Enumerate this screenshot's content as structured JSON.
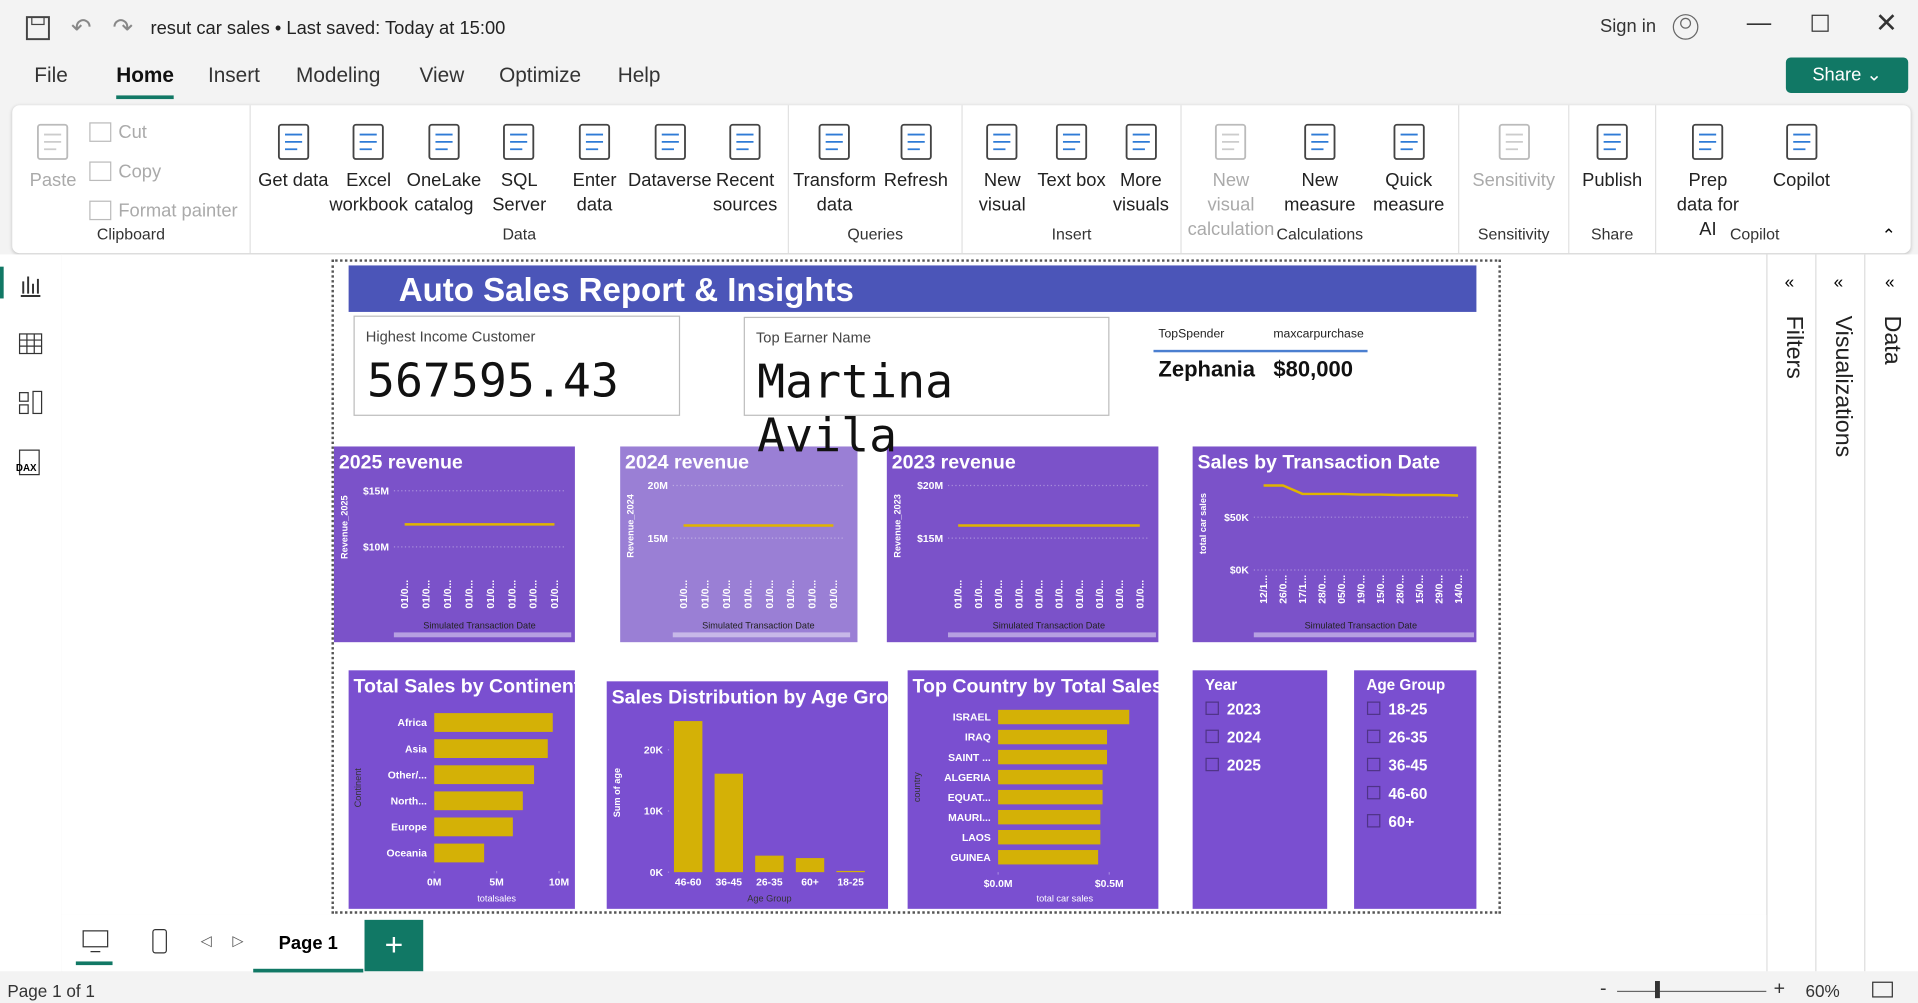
{
  "window": {
    "title": "resut car sales • Last saved: Today at 15:00",
    "sign_in": "Sign in"
  },
  "menu": {
    "tabs": [
      "File",
      "Home",
      "Insert",
      "Modeling",
      "View",
      "Optimize",
      "Help"
    ],
    "active_tab": "Home",
    "share": "Share"
  },
  "ribbon": {
    "groups": [
      {
        "name": "Clipboard",
        "buttons": [
          {
            "label": "Paste",
            "disabled": true
          },
          {
            "label": "Cut",
            "disabled": true
          },
          {
            "label": "Copy",
            "disabled": true
          },
          {
            "label": "Format painter",
            "disabled": true
          }
        ]
      },
      {
        "name": "Data",
        "buttons": [
          {
            "label": "Get data"
          },
          {
            "label": "Excel workbook"
          },
          {
            "label": "OneLake catalog"
          },
          {
            "label": "SQL Server"
          },
          {
            "label": "Enter data"
          },
          {
            "label": "Dataverse"
          },
          {
            "label": "Recent sources"
          }
        ]
      },
      {
        "name": "Queries",
        "buttons": [
          {
            "label": "Transform data"
          },
          {
            "label": "Refresh"
          }
        ]
      },
      {
        "name": "Insert",
        "buttons": [
          {
            "label": "New visual"
          },
          {
            "label": "Text box"
          },
          {
            "label": "More visuals"
          }
        ]
      },
      {
        "name": "Calculations",
        "buttons": [
          {
            "label": "New visual calculation",
            "disabled": true
          },
          {
            "label": "New measure"
          },
          {
            "label": "Quick measure"
          }
        ]
      },
      {
        "name": "Sensitivity",
        "buttons": [
          {
            "label": "Sensitivity",
            "disabled": true
          }
        ]
      },
      {
        "name": "Share",
        "buttons": [
          {
            "label": "Publish"
          }
        ]
      },
      {
        "name": "Copilot",
        "buttons": [
          {
            "label": "Prep data for AI"
          },
          {
            "label": "Copilot"
          }
        ]
      }
    ]
  },
  "report": {
    "title": "Auto Sales Report & Insights",
    "cards": [
      {
        "label": "Highest Income Customer",
        "value": "567595.43"
      },
      {
        "label": "Top Earner Name",
        "value": "Martina Avila"
      }
    ],
    "table": {
      "headers": [
        "TopSpender",
        "maxcarpurchase"
      ],
      "rows": [
        [
          "Zephania",
          "$80,000"
        ]
      ]
    },
    "charts": [
      {
        "type": "line",
        "title": "2025 revenue",
        "y_label": "Revenue_2025",
        "x_label": "Simulated Transaction Date",
        "categories": [
          "01/0...",
          "01/0...",
          "01/0...",
          "01/0...",
          "01/0...",
          "01/0...",
          "01/0...",
          "01/0..."
        ],
        "values": [
          12000000,
          12000000,
          12000000,
          12000000,
          12000000,
          12000000,
          12000000,
          12000000
        ],
        "ylim": [
          7500000,
          16000000
        ],
        "yticks": [
          {
            "value": 10000000,
            "label": "$10M"
          },
          {
            "value": 15000000,
            "label": "$15M"
          }
        ],
        "color": "#e0b400",
        "background": "#7b52c9",
        "grid": true
      },
      {
        "type": "line",
        "title": "2024 revenue",
        "y_label": "Revenue_2024",
        "x_label": "Simulated Transaction Date",
        "categories": [
          "01/0...",
          "01/0...",
          "01/0...",
          "01/0...",
          "01/0...",
          "01/0...",
          "01/0...",
          "01/0..."
        ],
        "values": [
          16200000,
          16200000,
          16200000,
          16200000,
          16200000,
          16200000,
          16200000,
          16200000
        ],
        "ylim": [
          11500000,
          20800000
        ],
        "yticks": [
          {
            "value": 15000000,
            "label": "15M"
          },
          {
            "value": 20000000,
            "label": "20M"
          }
        ],
        "color": "#e0b400",
        "background": "#9a7fd5",
        "grid": true
      },
      {
        "type": "line",
        "title": "2023 revenue",
        "y_label": "Revenue_2023",
        "x_label": "Simulated Transaction Date",
        "categories": [
          "01/0...",
          "01/0...",
          "01/0...",
          "01/0...",
          "01/0...",
          "01/0...",
          "01/0...",
          "01/0...",
          "01/0...",
          "01/0..."
        ],
        "values": [
          16200000,
          16200000,
          16200000,
          16200000,
          16200000,
          16200000,
          16200000,
          16200000,
          16200000,
          16200000
        ],
        "ylim": [
          11500000,
          20800000
        ],
        "yticks": [
          {
            "value": 15000000,
            "label": "$15M"
          },
          {
            "value": 20000000,
            "label": "$20M"
          }
        ],
        "color": "#e0b400",
        "background": "#7b52c9",
        "grid": true
      },
      {
        "type": "line",
        "title": "Sales by Transaction Date",
        "y_label": "total car sales",
        "x_label": "Simulated Transaction Date",
        "categories": [
          "12/1...",
          "26/0...",
          "17/1...",
          "28/0...",
          "05/0...",
          "19/0...",
          "15/0...",
          "28/0...",
          "15/0...",
          "29/0...",
          "14/0..."
        ],
        "values": [
          80000,
          80000,
          72000,
          72000,
          72000,
          71500,
          71500,
          71000,
          71000,
          71000,
          70500
        ],
        "ylim": [
          0,
          88000
        ],
        "yticks": [
          {
            "value": 0,
            "label": "$0K"
          },
          {
            "value": 50000,
            "label": "$50K"
          }
        ],
        "color": "#e0b400",
        "background": "#7b52c9",
        "grid": true
      },
      {
        "type": "bar",
        "orientation": "horizontal",
        "title": "Total Sales by Continent",
        "y_label": "Continent",
        "x_label": "totalsales",
        "categories": [
          "Africa",
          "Asia",
          "Other/...",
          "North...",
          "Europe",
          "Oceania"
        ],
        "values": [
          9500000,
          9100000,
          8000000,
          7100000,
          6300000,
          4000000
        ],
        "xlim": [
          0,
          10000000
        ],
        "xticks": [
          {
            "value": 0,
            "label": "0M"
          },
          {
            "value": 5000000,
            "label": "5M"
          },
          {
            "value": 10000000,
            "label": "10M"
          }
        ],
        "color": "#d4b106",
        "background": "#7a4fd0",
        "grid": false
      },
      {
        "type": "bar",
        "orientation": "vertical",
        "title": "Sales Distribution by Age Group",
        "y_label": "Sum of age",
        "x_label": "Age Group",
        "categories": [
          "46-60",
          "36-45",
          "26-35",
          "60+",
          "18-25"
        ],
        "values": [
          24700,
          16100,
          2700,
          2300,
          200
        ],
        "ylim": [
          0,
          26000
        ],
        "yticks": [
          {
            "value": 0,
            "label": "0K"
          },
          {
            "value": 10000,
            "label": "10K"
          },
          {
            "value": 20000,
            "label": "20K"
          }
        ],
        "color": "#d4b106",
        "background": "#7a4fd0",
        "grid": false
      },
      {
        "type": "bar",
        "orientation": "horizontal",
        "title": "Top Country by Total Sales",
        "y_label": "country",
        "x_label": "total car sales",
        "categories": [
          "ISRAEL",
          "IRAQ",
          "SAINT ...",
          "ALGERIA",
          "EQUAT...",
          "MAURI...",
          "LAOS",
          "GUINEA"
        ],
        "values": [
          590000,
          490000,
          490000,
          470000,
          470000,
          460000,
          460000,
          450000
        ],
        "xlim": [
          0,
          600000
        ],
        "xticks": [
          {
            "value": 0,
            "label": "$0.0M"
          },
          {
            "value": 500000,
            "label": "$0.5M"
          }
        ],
        "color": "#d4b106",
        "background": "#7a4fd0",
        "grid": false
      }
    ],
    "slicers": [
      {
        "title": "Year",
        "items": [
          "2023",
          "2024",
          "2025"
        ]
      },
      {
        "title": "Age Group",
        "items": [
          "18-25",
          "26-35",
          "36-45",
          "46-60",
          "60+"
        ]
      }
    ]
  },
  "panes": [
    "Filters",
    "Visualizations",
    "Data"
  ],
  "pages": {
    "tabs": [
      "Page 1"
    ],
    "status": "Page 1 of 1",
    "zoom": "60%"
  }
}
